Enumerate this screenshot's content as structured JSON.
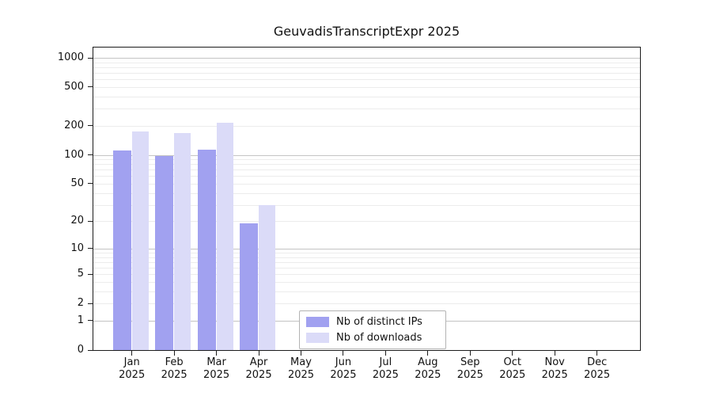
{
  "chart_data": {
    "type": "bar",
    "title": "GeuvadisTranscriptExpr 2025",
    "categories": [
      "Jan 2025",
      "Feb 2025",
      "Mar 2025",
      "Apr 2025",
      "May 2025",
      "Jun 2025",
      "Jul 2025",
      "Aug 2025",
      "Sep 2025",
      "Oct 2025",
      "Nov 2025",
      "Dec 2025"
    ],
    "series": [
      {
        "name": "Nb of distinct IPs",
        "color": "#a1a1f0",
        "values": [
          110,
          98,
          113,
          19,
          0,
          0,
          0,
          0,
          0,
          0,
          0,
          0
        ]
      },
      {
        "name": "Nb of downloads",
        "color": "#dbdbf8",
        "values": [
          176,
          169,
          214,
          30,
          0,
          0,
          0,
          0,
          0,
          0,
          0,
          0
        ]
      }
    ],
    "yscale": "symlog-log1p",
    "y_ticks_labeled": [
      0,
      1,
      2,
      5,
      10,
      20,
      50,
      100,
      200,
      500,
      1000
    ],
    "y_max": 1000,
    "grid": true,
    "grid_minor_color": "#ececec",
    "grid_major_color": "#c4c4c4",
    "axis_color": "#1c1c1c",
    "legend_position": "bottom-center",
    "legend_border_color": "#b3b3b3"
  }
}
